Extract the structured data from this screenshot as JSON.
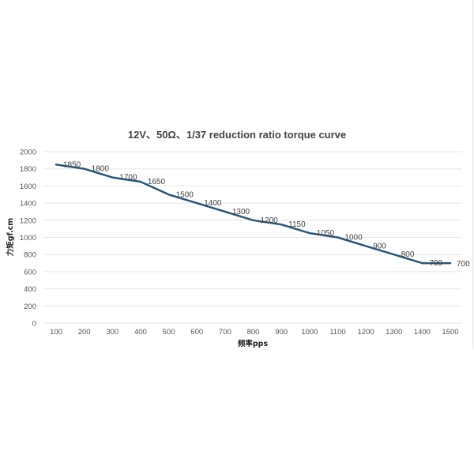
{
  "chart_data": {
    "type": "line",
    "title": "12V、50Ω、1/37 reduction ratio torque curve",
    "xlabel": "频率pps",
    "ylabel": "力矩gf.cm",
    "x": [
      100,
      200,
      300,
      400,
      500,
      600,
      700,
      800,
      900,
      1000,
      1100,
      1200,
      1300,
      1400,
      1500
    ],
    "x_ticks": [
      "100",
      "200",
      "300",
      "400",
      "500",
      "600",
      "700",
      "800",
      "900",
      "1000",
      "1100",
      "1200",
      "1300",
      "1400",
      "1500"
    ],
    "y_ticks": [
      "0",
      "200",
      "400",
      "600",
      "800",
      "1000",
      "1200",
      "1400",
      "1600",
      "1800",
      "2000"
    ],
    "ylim": [
      0,
      2000
    ],
    "grid": "horizontal",
    "series": [
      {
        "values": [
          1850,
          1800,
          1700,
          1650,
          1500,
          1400,
          1300,
          1200,
          1150,
          1050,
          1000,
          900,
          800,
          700,
          700
        ],
        "labels": [
          "1850",
          "1800",
          "1700",
          "1650",
          "1500",
          "1400",
          "1300",
          "1200",
          "1150",
          "1050",
          "1000",
          "900",
          "800",
          "700",
          "700"
        ],
        "color": "#2b557a"
      }
    ]
  }
}
